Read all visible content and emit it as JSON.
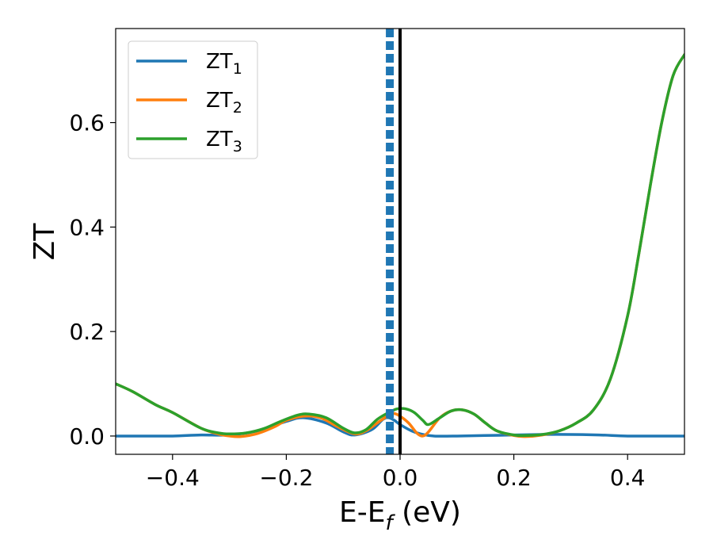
{
  "chart_data": {
    "type": "line",
    "xlabel": "E-E",
    "xlabel_sub": "f",
    "xlabel_unit": " (eV)",
    "ylabel": "ZT",
    "xlim": [
      -0.5,
      0.5
    ],
    "ylim": [
      -0.035,
      0.78
    ],
    "xticks": [
      -0.4,
      -0.2,
      0.0,
      0.2,
      0.4
    ],
    "xtick_labels": [
      "−0.4",
      "−0.2",
      "0.0",
      "0.2",
      "0.4"
    ],
    "yticks": [
      0.0,
      0.2,
      0.4,
      0.6
    ],
    "ytick_labels": [
      "0.0",
      "0.2",
      "0.4",
      "0.6"
    ],
    "legend_position": "top-left",
    "vlines": [
      {
        "x": -0.018,
        "style": "dashed",
        "color": "#1f77b4"
      },
      {
        "x": 0.0,
        "style": "solid",
        "color": "#000000"
      }
    ],
    "series": [
      {
        "name": "ZT",
        "name_sub": "1",
        "color": "#1f77b4",
        "points": [
          [
            -0.5,
            0.0
          ],
          [
            -0.45,
            0.0
          ],
          [
            -0.4,
            0.0
          ],
          [
            -0.35,
            0.002
          ],
          [
            -0.3,
            0.002
          ],
          [
            -0.25,
            0.01
          ],
          [
            -0.2,
            0.028
          ],
          [
            -0.17,
            0.035
          ],
          [
            -0.13,
            0.025
          ],
          [
            -0.1,
            0.008
          ],
          [
            -0.08,
            0.002
          ],
          [
            -0.05,
            0.012
          ],
          [
            -0.03,
            0.032
          ],
          [
            -0.02,
            0.035
          ],
          [
            -0.01,
            0.03
          ],
          [
            0.0,
            0.022
          ],
          [
            0.02,
            0.01
          ],
          [
            0.04,
            0.003
          ],
          [
            0.06,
            0.0
          ],
          [
            0.1,
            0.0
          ],
          [
            0.15,
            0.001
          ],
          [
            0.2,
            0.002
          ],
          [
            0.25,
            0.003
          ],
          [
            0.3,
            0.003
          ],
          [
            0.35,
            0.002
          ],
          [
            0.4,
            0.0
          ],
          [
            0.45,
            0.0
          ],
          [
            0.5,
            0.0
          ]
        ]
      },
      {
        "name": "ZT",
        "name_sub": "2",
        "color": "#ff7f0e",
        "points": [
          [
            -0.5,
            0.1
          ],
          [
            -0.47,
            0.085
          ],
          [
            -0.43,
            0.06
          ],
          [
            -0.4,
            0.045
          ],
          [
            -0.35,
            0.015
          ],
          [
            -0.32,
            0.004
          ],
          [
            -0.3,
            0.0
          ],
          [
            -0.28,
            -0.001
          ],
          [
            -0.25,
            0.005
          ],
          [
            -0.22,
            0.018
          ],
          [
            -0.2,
            0.03
          ],
          [
            -0.17,
            0.038
          ],
          [
            -0.14,
            0.035
          ],
          [
            -0.11,
            0.018
          ],
          [
            -0.08,
            0.004
          ],
          [
            -0.06,
            0.01
          ],
          [
            -0.04,
            0.025
          ],
          [
            -0.02,
            0.04
          ],
          [
            -0.01,
            0.043
          ],
          [
            0.0,
            0.038
          ],
          [
            0.015,
            0.025
          ],
          [
            0.03,
            0.005
          ],
          [
            0.04,
            0.0
          ],
          [
            0.05,
            0.008
          ],
          [
            0.07,
            0.035
          ],
          [
            0.09,
            0.048
          ],
          [
            0.11,
            0.05
          ],
          [
            0.13,
            0.042
          ],
          [
            0.15,
            0.025
          ],
          [
            0.17,
            0.01
          ],
          [
            0.2,
            0.001
          ],
          [
            0.22,
            -0.001
          ],
          [
            0.25,
            0.002
          ],
          [
            0.28,
            0.01
          ],
          [
            0.31,
            0.025
          ],
          [
            0.34,
            0.05
          ],
          [
            0.37,
            0.11
          ],
          [
            0.4,
            0.23
          ],
          [
            0.42,
            0.35
          ],
          [
            0.44,
            0.48
          ],
          [
            0.46,
            0.6
          ],
          [
            0.48,
            0.69
          ],
          [
            0.5,
            0.73
          ]
        ]
      },
      {
        "name": "ZT",
        "name_sub": "3",
        "color": "#2ca02c",
        "points": [
          [
            -0.5,
            0.1
          ],
          [
            -0.47,
            0.085
          ],
          [
            -0.43,
            0.06
          ],
          [
            -0.4,
            0.045
          ],
          [
            -0.35,
            0.015
          ],
          [
            -0.32,
            0.006
          ],
          [
            -0.3,
            0.004
          ],
          [
            -0.27,
            0.006
          ],
          [
            -0.24,
            0.014
          ],
          [
            -0.21,
            0.028
          ],
          [
            -0.18,
            0.04
          ],
          [
            -0.16,
            0.042
          ],
          [
            -0.13,
            0.035
          ],
          [
            -0.1,
            0.015
          ],
          [
            -0.08,
            0.006
          ],
          [
            -0.06,
            0.012
          ],
          [
            -0.04,
            0.032
          ],
          [
            -0.02,
            0.045
          ],
          [
            -0.005,
            0.052
          ],
          [
            0.01,
            0.052
          ],
          [
            0.025,
            0.045
          ],
          [
            0.04,
            0.03
          ],
          [
            0.05,
            0.022
          ],
          [
            0.07,
            0.035
          ],
          [
            0.09,
            0.048
          ],
          [
            0.11,
            0.05
          ],
          [
            0.13,
            0.042
          ],
          [
            0.15,
            0.025
          ],
          [
            0.17,
            0.01
          ],
          [
            0.2,
            0.002
          ],
          [
            0.22,
            0.001
          ],
          [
            0.25,
            0.003
          ],
          [
            0.28,
            0.01
          ],
          [
            0.31,
            0.025
          ],
          [
            0.34,
            0.05
          ],
          [
            0.37,
            0.11
          ],
          [
            0.4,
            0.23
          ],
          [
            0.42,
            0.35
          ],
          [
            0.44,
            0.48
          ],
          [
            0.46,
            0.6
          ],
          [
            0.48,
            0.69
          ],
          [
            0.5,
            0.73
          ]
        ]
      }
    ]
  }
}
